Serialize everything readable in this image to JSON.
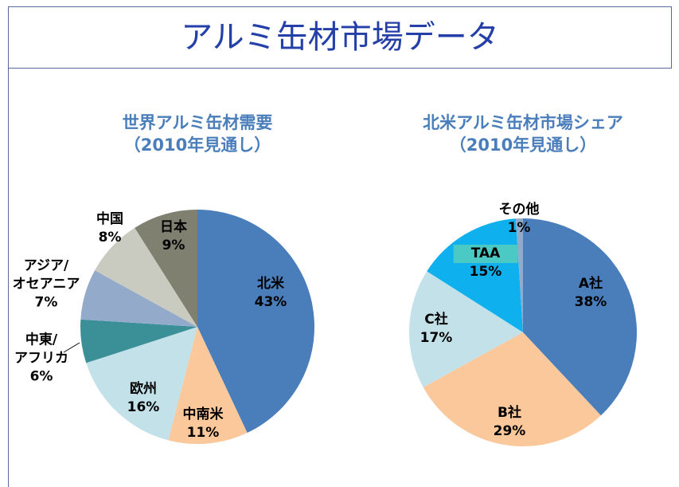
{
  "title": "アルミ缶材市場データ",
  "chart_data": [
    {
      "type": "pie",
      "title": "世界アルミ缶材需要",
      "subtitle": "（2010年見通し）",
      "categories": [
        "北米",
        "中南米",
        "欧州",
        "中東/\nアフリカ",
        "アジア/\nオセアニア",
        "中国",
        "日本"
      ],
      "values": [
        43,
        11,
        16,
        6,
        7,
        8,
        9
      ],
      "value_labels": [
        "43%",
        "11%",
        "16%",
        "6%",
        "7%",
        "8%",
        "9%"
      ],
      "colors": [
        "#4a7ebb",
        "#fac89b",
        "#c3e1e9",
        "#3b8f97",
        "#94aacb",
        "#c9cbc0",
        "#7f8070"
      ]
    },
    {
      "type": "pie",
      "title": "北米アルミ缶材市場シェア",
      "subtitle": "（2010年見通し）",
      "categories": [
        "A社",
        "B社",
        "C社",
        "TAA",
        "その他"
      ],
      "values": [
        38,
        29,
        17,
        15,
        1
      ],
      "value_labels": [
        "38%",
        "29%",
        "17%",
        "15%",
        "1%"
      ],
      "colors": [
        "#4a7ebb",
        "#fac89b",
        "#c3e1e9",
        "#0fb0ee",
        "#94aacb"
      ]
    }
  ]
}
